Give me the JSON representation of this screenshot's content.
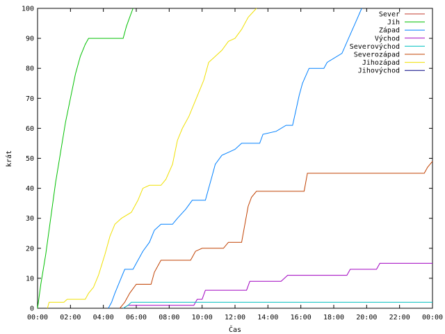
{
  "chart_data": {
    "type": "line",
    "title": "",
    "xlabel": "Čas",
    "ylabel": "krát",
    "xlim": [
      "00:00",
      "24:00"
    ],
    "ylim": [
      0,
      100
    ],
    "x_tick_labels": [
      "00:00",
      "02:00",
      "04:00",
      "06:00",
      "08:00",
      "10:00",
      "12:00",
      "14:00",
      "16:00",
      "18:00",
      "20:00",
      "22:00",
      "00:00"
    ],
    "y_tick_labels": [
      "0",
      "10",
      "20",
      "30",
      "40",
      "50",
      "60",
      "70",
      "80",
      "90",
      "100"
    ],
    "grid": false,
    "legend_position": "top-right",
    "series": [
      {
        "name": "Sever",
        "color": "#c0392b",
        "points": []
      },
      {
        "name": "Jih",
        "color": "#00c000",
        "points": [
          [
            "00:00",
            0
          ],
          [
            "00:12",
            8
          ],
          [
            "00:30",
            18
          ],
          [
            "00:48",
            30
          ],
          [
            "01:06",
            42
          ],
          [
            "01:24",
            52
          ],
          [
            "01:42",
            62
          ],
          [
            "02:00",
            70
          ],
          [
            "02:18",
            78
          ],
          [
            "02:36",
            84
          ],
          [
            "02:54",
            88
          ],
          [
            "03:06",
            90
          ],
          [
            "05:12",
            90
          ],
          [
            "05:24",
            94
          ],
          [
            "05:36",
            97
          ],
          [
            "05:48",
            100
          ]
        ]
      },
      {
        "name": "Západ",
        "color": "#0080ff",
        "points": [
          [
            "04:18",
            0
          ],
          [
            "04:30",
            2
          ],
          [
            "04:42",
            5
          ],
          [
            "05:00",
            9
          ],
          [
            "05:18",
            13
          ],
          [
            "05:48",
            13
          ],
          [
            "06:00",
            15
          ],
          [
            "06:24",
            19
          ],
          [
            "06:48",
            22
          ],
          [
            "07:06",
            26
          ],
          [
            "07:30",
            28
          ],
          [
            "08:12",
            28
          ],
          [
            "08:30",
            30
          ],
          [
            "09:00",
            33
          ],
          [
            "09:24",
            36
          ],
          [
            "10:12",
            36
          ],
          [
            "10:24",
            40
          ],
          [
            "10:36",
            44
          ],
          [
            "10:48",
            48
          ],
          [
            "11:12",
            51
          ],
          [
            "11:36",
            52
          ],
          [
            "12:00",
            53
          ],
          [
            "12:24",
            55
          ],
          [
            "13:30",
            55
          ],
          [
            "13:42",
            58
          ],
          [
            "14:30",
            59
          ],
          [
            "15:06",
            61
          ],
          [
            "15:30",
            61
          ],
          [
            "15:42",
            66
          ],
          [
            "15:54",
            71
          ],
          [
            "16:06",
            75
          ],
          [
            "16:30",
            80
          ],
          [
            "17:24",
            80
          ],
          [
            "17:36",
            82
          ],
          [
            "18:30",
            85
          ],
          [
            "18:54",
            90
          ],
          [
            "19:18",
            95
          ],
          [
            "19:42",
            100
          ]
        ]
      },
      {
        "name": "Východ",
        "color": "#a000c0",
        "points": [
          [
            "05:12",
            0
          ],
          [
            "05:30",
            1
          ],
          [
            "09:30",
            1
          ],
          [
            "09:42",
            3
          ],
          [
            "10:00",
            3
          ],
          [
            "10:12",
            6
          ],
          [
            "12:42",
            6
          ],
          [
            "12:54",
            9
          ],
          [
            "14:48",
            9
          ],
          [
            "15:12",
            11
          ],
          [
            "18:48",
            11
          ],
          [
            "19:00",
            13
          ],
          [
            "20:36",
            13
          ],
          [
            "20:48",
            15
          ],
          [
            "24:00",
            15
          ]
        ]
      },
      {
        "name": "Severovýchod",
        "color": "#00c0c0",
        "points": [
          [
            "05:12",
            0
          ],
          [
            "05:30",
            1
          ],
          [
            "05:42",
            2
          ],
          [
            "24:00",
            2
          ]
        ]
      },
      {
        "name": "Severozápad",
        "color": "#c04000",
        "points": [
          [
            "05:00",
            0
          ],
          [
            "05:18",
            2
          ],
          [
            "05:36",
            5
          ],
          [
            "06:00",
            8
          ],
          [
            "06:54",
            8
          ],
          [
            "07:06",
            12
          ],
          [
            "07:30",
            16
          ],
          [
            "09:18",
            16
          ],
          [
            "09:36",
            19
          ],
          [
            "10:00",
            20
          ],
          [
            "11:18",
            20
          ],
          [
            "11:36",
            22
          ],
          [
            "12:24",
            22
          ],
          [
            "12:36",
            28
          ],
          [
            "12:48",
            34
          ],
          [
            "13:00",
            37
          ],
          [
            "13:18",
            39
          ],
          [
            "16:12",
            39
          ],
          [
            "16:24",
            45
          ],
          [
            "23:30",
            45
          ],
          [
            "23:42",
            47
          ],
          [
            "24:00",
            49
          ]
        ]
      },
      {
        "name": "Jihozápad",
        "color": "#f0e000",
        "points": [
          [
            "00:36",
            0
          ],
          [
            "00:42",
            2
          ],
          [
            "01:36",
            2
          ],
          [
            "01:48",
            3
          ],
          [
            "02:54",
            3
          ],
          [
            "03:06",
            5
          ],
          [
            "03:24",
            7
          ],
          [
            "03:42",
            11
          ],
          [
            "04:06",
            18
          ],
          [
            "04:24",
            24
          ],
          [
            "04:42",
            28
          ],
          [
            "05:06",
            30
          ],
          [
            "05:42",
            32
          ],
          [
            "06:06",
            36
          ],
          [
            "06:24",
            40
          ],
          [
            "06:48",
            41
          ],
          [
            "07:30",
            41
          ],
          [
            "07:48",
            43
          ],
          [
            "08:12",
            48
          ],
          [
            "08:30",
            56
          ],
          [
            "08:48",
            60
          ],
          [
            "09:12",
            64
          ],
          [
            "09:30",
            68
          ],
          [
            "09:48",
            72
          ],
          [
            "10:06",
            76
          ],
          [
            "10:24",
            82
          ],
          [
            "10:48",
            84
          ],
          [
            "11:12",
            86
          ],
          [
            "11:36",
            89
          ],
          [
            "12:00",
            90
          ],
          [
            "12:24",
            93
          ],
          [
            "12:48",
            97
          ],
          [
            "13:18",
            100
          ]
        ]
      },
      {
        "name": "Jihovýchod",
        "color": "#000080",
        "points": []
      }
    ]
  }
}
